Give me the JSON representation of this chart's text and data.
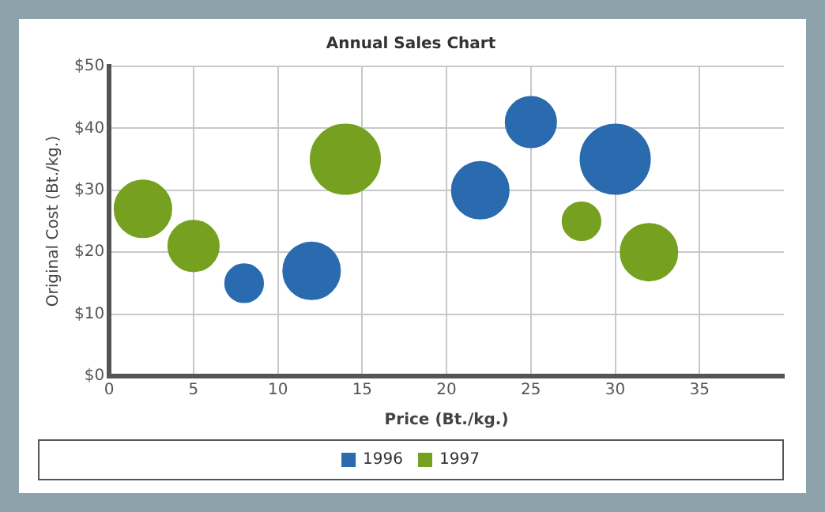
{
  "chart_data": {
    "type": "bubble",
    "title": "Annual Sales Chart",
    "xlabel": "Price (Bt./kg.)",
    "ylabel": "Original Cost (Bt./kg.)",
    "xlim": [
      0,
      40
    ],
    "xticks": [
      0,
      5,
      10,
      15,
      20,
      25,
      30,
      35
    ],
    "ylim": [
      0,
      50
    ],
    "yticks": [
      {
        "value": 0,
        "label": "$0"
      },
      {
        "value": 10,
        "label": "$10"
      },
      {
        "value": 20,
        "label": "$20"
      },
      {
        "value": 30,
        "label": "$30"
      },
      {
        "value": 40,
        "label": "$40"
      },
      {
        "value": 50,
        "label": "$50"
      }
    ],
    "grid": true,
    "legend": "bottom",
    "series": [
      {
        "name": "1996",
        "color": "#2a6aae",
        "x": [
          8,
          12,
          22,
          25,
          30
        ],
        "values": [
          15,
          17,
          30,
          41,
          35
        ],
        "sizes": [
          0.3,
          0.67,
          0.67,
          0.53,
          1
        ]
      },
      {
        "name": "1997",
        "color": "#76a020",
        "x": [
          2,
          5,
          14,
          28,
          32
        ],
        "values": [
          27,
          21,
          35,
          25,
          20
        ],
        "sizes": [
          0.67,
          0.53,
          1,
          0.3,
          0.67
        ]
      }
    ]
  }
}
